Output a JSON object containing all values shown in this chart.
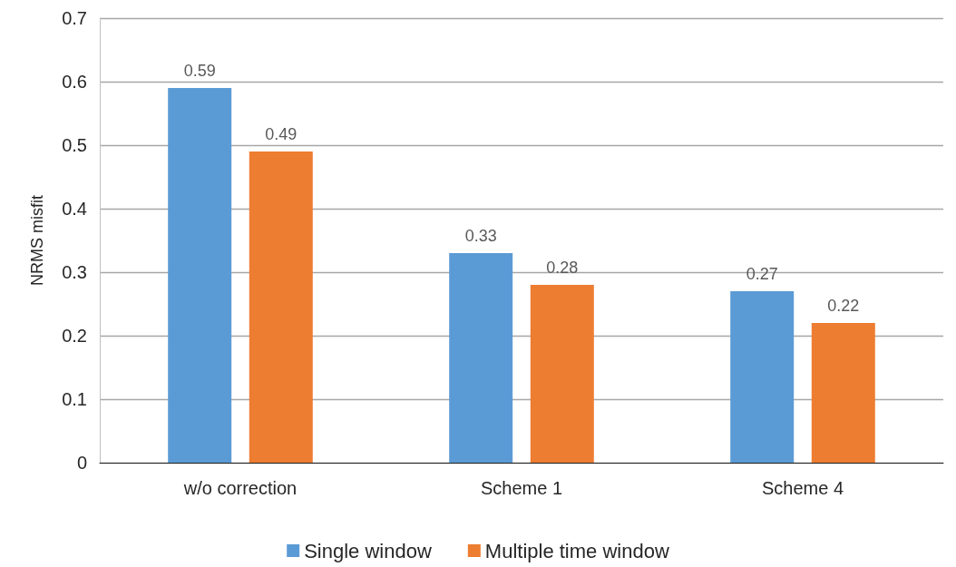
{
  "chart_data": {
    "type": "bar",
    "ylabel": "NRMS misfit",
    "categories": [
      "w/o correction",
      "Scheme 1",
      "Scheme 4"
    ],
    "series": [
      {
        "name": "Single window",
        "color": "#5b9bd5",
        "values": [
          0.59,
          0.33,
          0.27
        ]
      },
      {
        "name": "Multiple time window",
        "color": "#ed7d31",
        "values": [
          0.49,
          0.28,
          0.22
        ]
      }
    ],
    "ylim": [
      0,
      0.7
    ],
    "yticks": [
      0,
      0.1,
      0.2,
      0.3,
      0.4,
      0.5,
      0.6,
      0.7
    ],
    "grid": "y",
    "legend": "bottom",
    "data_labels": true
  }
}
